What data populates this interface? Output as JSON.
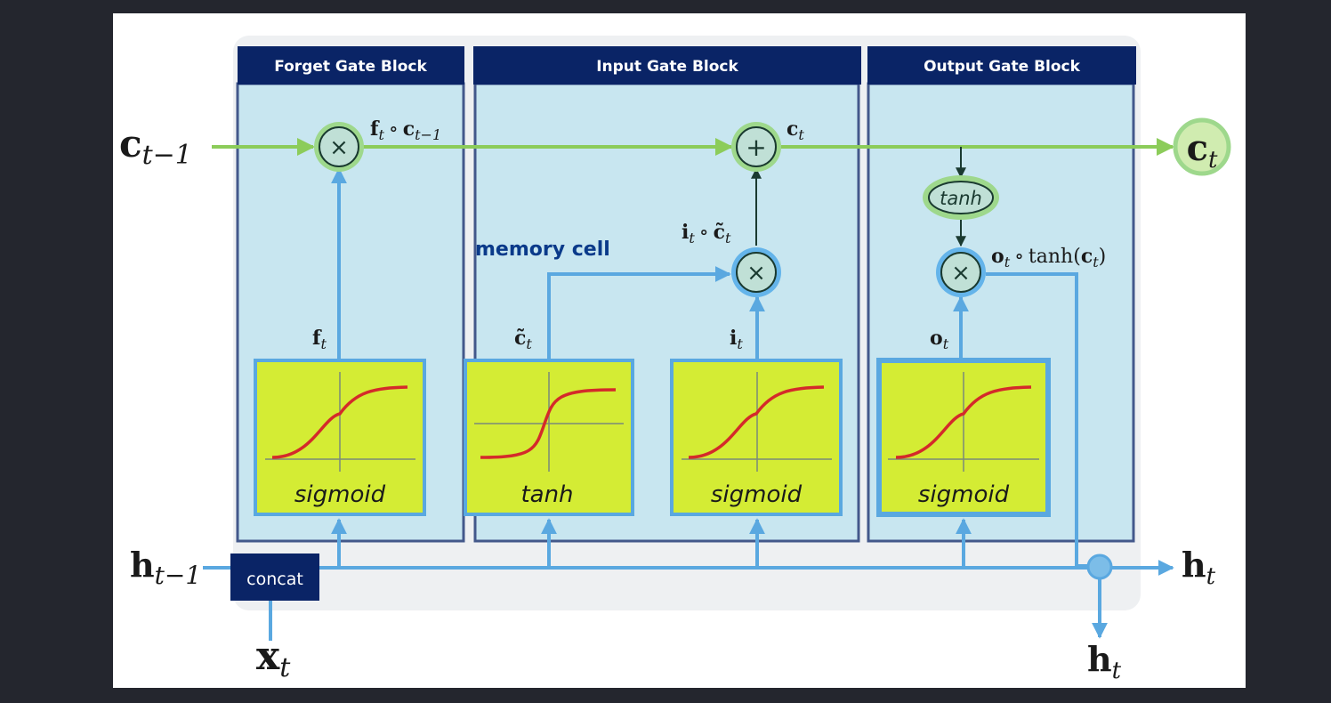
{
  "blocks": {
    "forget": "Forget Gate Block",
    "input": "Input Gate Block",
    "output": "Output Gate Block"
  },
  "memory_cell_label": "memory cell",
  "concat_label": "concat",
  "activations": {
    "forget": "sigmoid",
    "candidate": "tanh",
    "input": "sigmoid",
    "output": "sigmoid",
    "tanh_node": "tanh"
  },
  "ops": {
    "multiply": "×",
    "add": "+",
    "compose": "∘"
  },
  "symbols": {
    "c": "c",
    "h": "h",
    "x": "x",
    "f": "f",
    "i": "i",
    "o": "o",
    "ctilde": "c̃",
    "tanh_fn": "tanh",
    "t": "t",
    "t_minus_1": "t−1",
    "paren_open": "(",
    "paren_close": ")"
  },
  "colors": {
    "block_fill": "#c8e6f0",
    "block_border": "#43588b",
    "header_fill": "#0a2466",
    "cell_line": "#8ccc5a",
    "hidden_line": "#5aa8e0",
    "activation_fill": "#d4ec34",
    "curve": "#d42a2a",
    "memory_cell_text": "#0a3a8a"
  }
}
